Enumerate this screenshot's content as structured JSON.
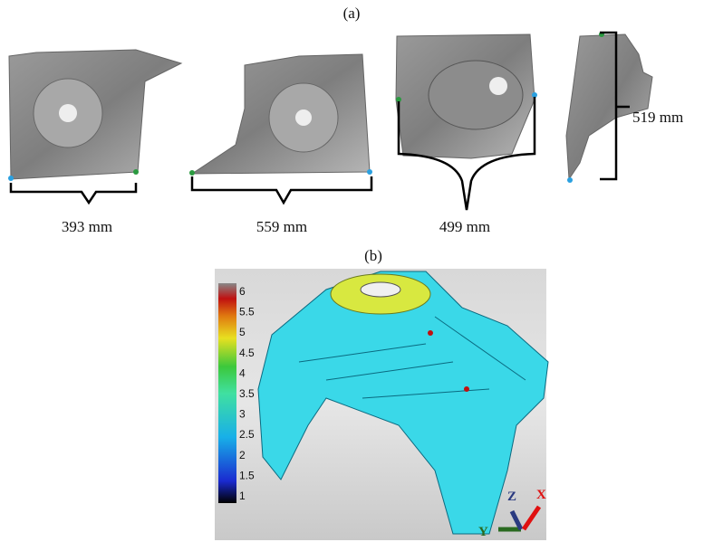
{
  "panel_a": {
    "label": "(a)",
    "dimensions": [
      "393 mm",
      "559 mm",
      "499 mm",
      "519 mm"
    ]
  },
  "panel_b": {
    "label": "(b)",
    "colorbar_ticks": [
      6,
      5.5,
      5,
      4.5,
      4,
      3.5,
      3,
      2.5,
      2,
      1.5,
      1
    ],
    "axes": {
      "z": "Z",
      "x": "X",
      "y": "Y"
    }
  }
}
